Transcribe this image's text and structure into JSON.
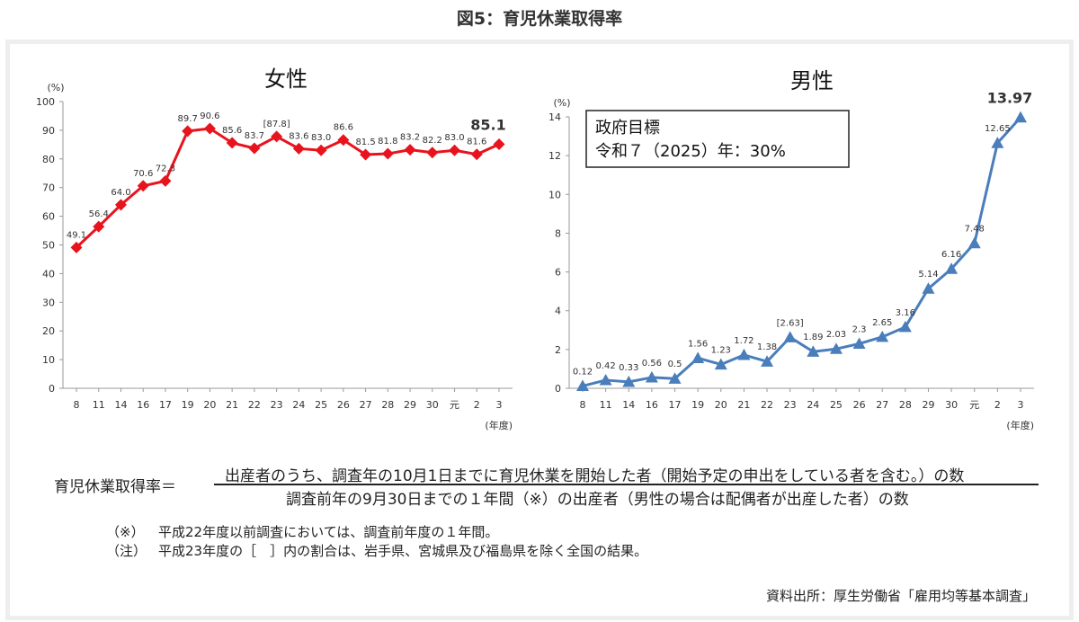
{
  "figure_title": "図5：育児休業取得率",
  "chart_data": [
    {
      "type": "line",
      "title": "女性",
      "ylabel": "(%)",
      "xlabel": "(年度)",
      "ylim": [
        0,
        100
      ],
      "yticks": [
        "0",
        "10",
        "20",
        "30",
        "40",
        "50",
        "60",
        "70",
        "80",
        "90",
        "100"
      ],
      "categories": [
        "8",
        "11",
        "14",
        "16",
        "17",
        "19",
        "20",
        "21",
        "22",
        "23",
        "24",
        "25",
        "26",
        "27",
        "28",
        "29",
        "30",
        "元",
        "2",
        "3"
      ],
      "values": [
        49.1,
        56.4,
        64.0,
        70.6,
        72.3,
        89.7,
        90.6,
        85.6,
        83.7,
        87.8,
        83.6,
        83.0,
        86.6,
        81.5,
        81.8,
        83.2,
        82.2,
        83.0,
        81.6,
        85.1
      ],
      "value_labels": [
        "49.1",
        "56.4",
        "64.0",
        "70.6",
        "72.3",
        "89.7",
        "90.6",
        "85.6",
        "83.7",
        "[87.8]",
        "83.6",
        "83.0",
        "86.6",
        "81.5",
        "81.8",
        "83.2",
        "82.2",
        "83.0",
        "81.6",
        "85.1"
      ],
      "color": "#e8131c",
      "marker": "diamond",
      "grid": false
    },
    {
      "type": "line",
      "title": "男性",
      "ylabel": "(%)",
      "xlabel": "(年度)",
      "ylim": [
        0,
        14
      ],
      "yticks": [
        "0",
        "2",
        "4",
        "6",
        "8",
        "10",
        "12",
        "14"
      ],
      "categories": [
        "8",
        "11",
        "14",
        "16",
        "17",
        "19",
        "20",
        "21",
        "22",
        "23",
        "24",
        "25",
        "26",
        "27",
        "28",
        "29",
        "30",
        "元",
        "2",
        "3"
      ],
      "values": [
        0.12,
        0.42,
        0.33,
        0.56,
        0.5,
        1.56,
        1.23,
        1.72,
        1.38,
        2.63,
        1.89,
        2.03,
        2.3,
        2.65,
        3.16,
        5.14,
        6.16,
        7.48,
        12.65,
        13.97
      ],
      "value_labels": [
        "0.12",
        "0.42",
        "0.33",
        "0.56",
        "0.5",
        "1.56",
        "1.23",
        "1.72",
        "1.38",
        "[2.63]",
        "1.89",
        "2.03",
        "2.3",
        "2.65",
        "3.16",
        "5.14",
        "6.16",
        "7.48",
        "12.65",
        "13.97"
      ],
      "color": "#4a7ebb",
      "marker": "triangle",
      "grid": false,
      "annotation": {
        "line1": "政府目標",
        "line2": "令和７（2025）年：30%"
      }
    }
  ],
  "formula": {
    "label": "育児休業取得率＝",
    "numerator": "出産者のうち、調査年の10月1日までに育児休業を開始した者（開始予定の申出をしている者を含む。）の数",
    "denominator": "調査前年の9月30日までの１年間（※）の出産者（男性の場合は配偶者が出産した者）の数"
  },
  "notes": [
    {
      "mark": "（※）",
      "text": "平成22年度以前調査においては、調査前年度の１年間。"
    },
    {
      "mark": "（注）",
      "text": "平成23年度の［　］内の割合は、岩手県、宮城県及び福島県を除く全国の結果。"
    }
  ],
  "source": "資料出所：厚生労働省「雇用均等基本調査」"
}
